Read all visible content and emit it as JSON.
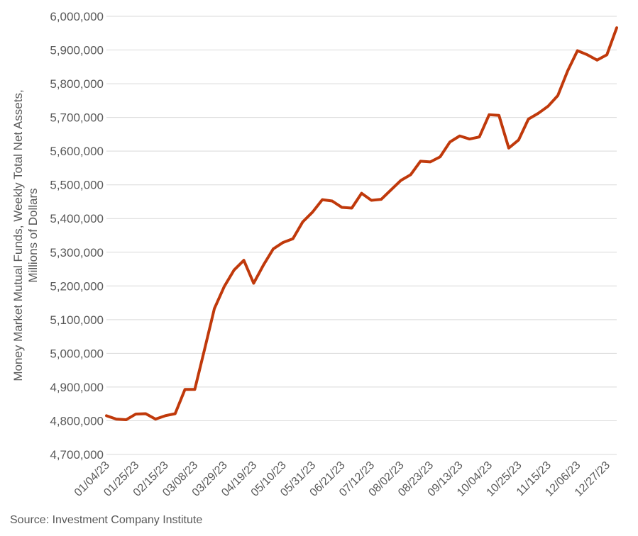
{
  "chart_data": {
    "type": "line",
    "title": "",
    "xlabel": "",
    "ylabel_lines": [
      "Money Market Mutual Funds, Weekly Total Net Assets,",
      "Millions of Dollars"
    ],
    "ylim": [
      4700000,
      6000000
    ],
    "yticks": [
      4700000,
      4800000,
      4900000,
      5000000,
      5100000,
      5200000,
      5300000,
      5400000,
      5500000,
      5600000,
      5700000,
      5800000,
      5900000,
      6000000
    ],
    "ytick_labels": [
      "4,700,000",
      "4,800,000",
      "4,900,000",
      "5,000,000",
      "5,100,000",
      "5,200,000",
      "5,300,000",
      "5,400,000",
      "5,500,000",
      "5,600,000",
      "5,700,000",
      "5,800,000",
      "5,900,000",
      "6,000,000"
    ],
    "xtick_labels": [
      "01/04/23",
      "01/25/23",
      "02/15/23",
      "03/08/23",
      "03/29/23",
      "04/19/23",
      "05/10/23",
      "05/31/23",
      "06/21/23",
      "07/12/23",
      "08/02/23",
      "08/23/23",
      "09/13/23",
      "10/04/23",
      "10/25/23",
      "11/15/23",
      "12/06/23",
      "12/27/23"
    ],
    "grid": true,
    "legend": "none",
    "line_color": "#c0390b",
    "categories": [
      "01/04/23",
      "01/11/23",
      "01/18/23",
      "01/25/23",
      "02/01/23",
      "02/08/23",
      "02/15/23",
      "02/22/23",
      "03/01/23",
      "03/08/23",
      "03/15/23",
      "03/22/23",
      "03/29/23",
      "04/05/23",
      "04/12/23",
      "04/19/23",
      "04/26/23",
      "05/03/23",
      "05/10/23",
      "05/17/23",
      "05/24/23",
      "05/31/23",
      "06/07/23",
      "06/14/23",
      "06/21/23",
      "06/28/23",
      "07/05/23",
      "07/12/23",
      "07/19/23",
      "07/26/23",
      "08/02/23",
      "08/09/23",
      "08/16/23",
      "08/23/23",
      "08/30/23",
      "09/06/23",
      "09/13/23",
      "09/20/23",
      "09/27/23",
      "10/04/23",
      "10/11/23",
      "10/18/23",
      "10/25/23",
      "11/01/23",
      "11/08/23",
      "11/15/23",
      "11/22/23",
      "11/29/23",
      "12/06/23",
      "12/13/23",
      "12/20/23",
      "12/27/23",
      "01/03/24"
    ],
    "series": [
      {
        "values": [
          4815000,
          4805000,
          4803000,
          4820000,
          4821000,
          4805000,
          4815000,
          4821000,
          4893000,
          4893000,
          5012000,
          5133000,
          5198000,
          5247000,
          5276000,
          5208000,
          5262000,
          5310000,
          5329000,
          5340000,
          5390000,
          5419000,
          5456000,
          5452000,
          5433000,
          5431000,
          5475000,
          5454000,
          5457000,
          5485000,
          5513000,
          5530000,
          5570000,
          5568000,
          5583000,
          5627000,
          5645000,
          5636000,
          5642000,
          5708000,
          5706000,
          5609000,
          5633000,
          5695000,
          5712000,
          5733000,
          5765000,
          5838000,
          5898000,
          5886000,
          5870000,
          5886000,
          5966000
        ]
      }
    ]
  },
  "source": "Source: Investment Company Institute"
}
